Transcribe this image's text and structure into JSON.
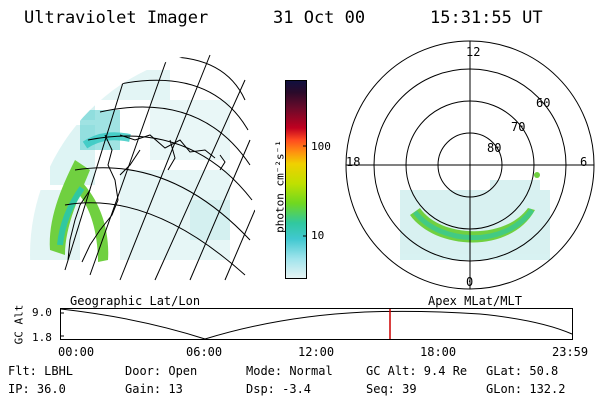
{
  "header": {
    "instrument": "Ultraviolet Imager",
    "date": "31 Oct 00",
    "time": "15:31:55 UT"
  },
  "map_panel": {
    "label": "Geographic Lat/Lon"
  },
  "polar_panel": {
    "label": "Apex MLat/MLT",
    "mlt_labels": {
      "top": "12",
      "left": "18",
      "right": "6",
      "bottom": "0"
    },
    "lat_labels": [
      "60",
      "70",
      "80"
    ]
  },
  "colorbar": {
    "unit_label": "photon cm⁻²s⁻¹",
    "tick_labels": [
      "100",
      "10"
    ],
    "colors": [
      "#101040",
      "#2a0a2a",
      "#5a0a2a",
      "#8a0a20",
      "#c00020",
      "#e0202a",
      "#ff4a20",
      "#ff8a10",
      "#ffb010",
      "#f0d000",
      "#c8e000",
      "#90e010",
      "#40d040",
      "#20c8a0",
      "#20c0c8",
      "#90e0e8",
      "#d8f0f0"
    ]
  },
  "timeline": {
    "axis_label": "GC Alt",
    "y_ticks": [
      "9.0",
      "1.8"
    ],
    "x_ticks": [
      "00:00",
      "06:00",
      "12:00",
      "18:00",
      "23:59"
    ],
    "current_marker_color": "#cc0000"
  },
  "status": {
    "filter": "Flt: LBHL",
    "door": "Door: Open",
    "mode": "Mode: Normal",
    "gc_alt": "GC Alt: 9.4 Re",
    "glat": "GLat:  50.8",
    "ip": "IP: 36.0",
    "gain": "Gain: 13",
    "dsp": "Dsp:   -3.4",
    "seq": "Seq: 39",
    "glon": "GLon: 132.2"
  }
}
